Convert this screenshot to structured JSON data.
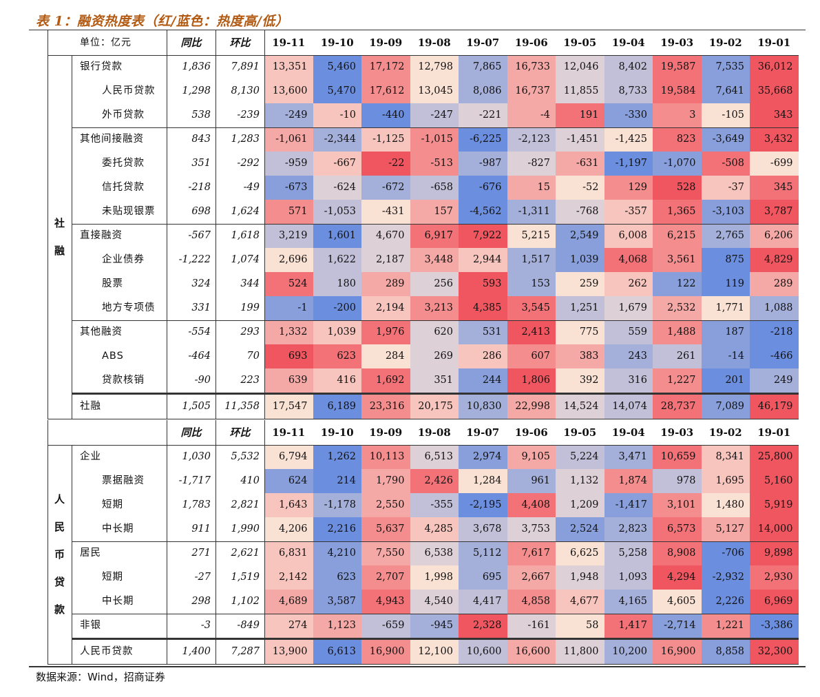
{
  "title": "表 1：融资热度表（红/蓝色：热度高/低）",
  "source": "数据来源：Wind，招商证券",
  "unit_label": "单位：亿元",
  "tables": [
    {
      "group": "社融",
      "header": {
        "yoy": "同比",
        "mom": "环比",
        "months": [
          "19-11",
          "19-10",
          "19-09",
          "19-08",
          "19-07",
          "19-06",
          "19-05",
          "19-04",
          "19-03",
          "19-02",
          "19-01"
        ]
      },
      "rows": [
        {
          "label": "银行贷款",
          "indent": false,
          "yoy": "1,836",
          "mom": "7,891",
          "values": [
            "13,351",
            "5,460",
            "17,172",
            "12,798",
            "7,865",
            "16,733",
            "12,046",
            "8,402",
            "19,587",
            "7,535",
            "36,012"
          ]
        },
        {
          "label": "人民币贷款",
          "indent": true,
          "yoy": "1,298",
          "mom": "8,130",
          "values": [
            "13,600",
            "5,470",
            "17,612",
            "13,045",
            "8,086",
            "16,737",
            "11,855",
            "8,733",
            "19,584",
            "7,641",
            "35,668"
          ]
        },
        {
          "label": "外币贷款",
          "indent": true,
          "yoy": "538",
          "mom": "-239",
          "values": [
            "-249",
            "-10",
            "-440",
            "-247",
            "-221",
            "-4",
            "191",
            "-330",
            "3",
            "-105",
            "343"
          ]
        },
        {
          "label": "其他间接融资",
          "indent": false,
          "yoy": "843",
          "mom": "1,283",
          "values": [
            "-1,061",
            "-2,344",
            "-1,125",
            "-1,015",
            "-6,225",
            "-2,123",
            "-1,451",
            "-1,425",
            "823",
            "-3,649",
            "3,432"
          ]
        },
        {
          "label": "委托贷款",
          "indent": true,
          "yoy": "351",
          "mom": "-292",
          "values": [
            "-959",
            "-667",
            "-22",
            "-513",
            "-987",
            "-827",
            "-631",
            "-1,197",
            "-1,070",
            "-508",
            "-699"
          ]
        },
        {
          "label": "信托贷款",
          "indent": true,
          "yoy": "-218",
          "mom": "-49",
          "values": [
            "-673",
            "-624",
            "-672",
            "-658",
            "-676",
            "15",
            "-52",
            "129",
            "528",
            "-37",
            "345"
          ]
        },
        {
          "label": "未贴现银票",
          "indent": true,
          "yoy": "698",
          "mom": "1,624",
          "values": [
            "571",
            "-1,053",
            "-431",
            "157",
            "-4,562",
            "-1,311",
            "-768",
            "-357",
            "1,365",
            "-3,103",
            "3,787"
          ]
        },
        {
          "label": "直接融资",
          "indent": false,
          "yoy": "-567",
          "mom": "1,618",
          "values": [
            "3,219",
            "1,601",
            "4,670",
            "6,917",
            "7,922",
            "5,215",
            "2,549",
            "6,008",
            "6,215",
            "2,765",
            "6,206"
          ]
        },
        {
          "label": "企业债券",
          "indent": true,
          "yoy": "-1,222",
          "mom": "1,074",
          "values": [
            "2,696",
            "1,622",
            "2,187",
            "3,448",
            "2,944",
            "1,517",
            "1,039",
            "4,068",
            "3,561",
            "875",
            "4,829"
          ]
        },
        {
          "label": "股票",
          "indent": true,
          "yoy": "324",
          "mom": "344",
          "values": [
            "524",
            "180",
            "289",
            "256",
            "593",
            "153",
            "259",
            "262",
            "122",
            "119",
            "289"
          ]
        },
        {
          "label": "地方专项债",
          "indent": true,
          "yoy": "331",
          "mom": "199",
          "values": [
            "-1",
            "-200",
            "2,194",
            "3,213",
            "4,385",
            "3,545",
            "1,251",
            "1,679",
            "2,532",
            "1,771",
            "1,088"
          ]
        },
        {
          "label": "其他融资",
          "indent": false,
          "yoy": "-554",
          "mom": "293",
          "values": [
            "1,332",
            "1,039",
            "1,976",
            "620",
            "531",
            "2,413",
            "775",
            "559",
            "1,488",
            "187",
            "-218"
          ]
        },
        {
          "label": "ABS",
          "indent": true,
          "yoy": "-464",
          "mom": "70",
          "values": [
            "693",
            "623",
            "284",
            "269",
            "286",
            "607",
            "383",
            "243",
            "261",
            "-14",
            "-466"
          ]
        },
        {
          "label": "贷款核销",
          "indent": true,
          "yoy": "-90",
          "mom": "223",
          "values": [
            "639",
            "416",
            "1,692",
            "351",
            "244",
            "1,806",
            "392",
            "316",
            "1,227",
            "201",
            "249"
          ]
        },
        {
          "label": "社融",
          "indent": false,
          "yoy": "1,505",
          "mom": "11,358",
          "values": [
            "17,547",
            "6,189",
            "23,316",
            "20,175",
            "10,830",
            "22,998",
            "14,524",
            "14,074",
            "28,737",
            "7,089",
            "46,179"
          ]
        }
      ]
    },
    {
      "group": "人民币贷款",
      "header": {
        "yoy": "同比",
        "mom": "环比",
        "months": [
          "19-11",
          "19-10",
          "19-09",
          "19-08",
          "19-07",
          "19-06",
          "19-05",
          "19-04",
          "19-03",
          "19-02",
          "19-01"
        ]
      },
      "rows": [
        {
          "label": "企业",
          "indent": false,
          "yoy": "1,030",
          "mom": "5,532",
          "values": [
            "6,794",
            "1,262",
            "10,113",
            "6,513",
            "2,974",
            "9,105",
            "5,224",
            "3,471",
            "10,659",
            "8,341",
            "25,800"
          ]
        },
        {
          "label": "票据融资",
          "indent": true,
          "yoy": "-1,717",
          "mom": "410",
          "values": [
            "624",
            "214",
            "1,790",
            "2,426",
            "1,284",
            "961",
            "1,132",
            "1,874",
            "978",
            "1,695",
            "5,160"
          ]
        },
        {
          "label": "短期",
          "indent": true,
          "yoy": "1,783",
          "mom": "2,821",
          "values": [
            "1,643",
            "-1,178",
            "2,550",
            "-355",
            "-2,195",
            "4,408",
            "1,209",
            "-1,417",
            "3,101",
            "1,480",
            "5,919"
          ]
        },
        {
          "label": "中长期",
          "indent": true,
          "yoy": "911",
          "mom": "1,990",
          "values": [
            "4,206",
            "2,216",
            "5,637",
            "4,285",
            "3,678",
            "3,753",
            "2,524",
            "2,823",
            "6,573",
            "5,127",
            "14,000"
          ]
        },
        {
          "label": "居民",
          "indent": false,
          "yoy": "271",
          "mom": "2,621",
          "values": [
            "6,831",
            "4,210",
            "7,550",
            "6,538",
            "5,112",
            "7,617",
            "6,625",
            "5,258",
            "8,908",
            "-706",
            "9,898"
          ]
        },
        {
          "label": "短期",
          "indent": true,
          "yoy": "-27",
          "mom": "1,519",
          "values": [
            "2,142",
            "623",
            "2,707",
            "1,998",
            "695",
            "2,667",
            "1,948",
            "1,093",
            "4,294",
            "-2,932",
            "2,930"
          ]
        },
        {
          "label": "中长期",
          "indent": true,
          "yoy": "298",
          "mom": "1,102",
          "values": [
            "4,689",
            "3,587",
            "4,943",
            "4,540",
            "4,417",
            "4,858",
            "4,677",
            "4,165",
            "4,605",
            "2,226",
            "6,969"
          ]
        },
        {
          "label": "非银",
          "indent": false,
          "yoy": "-3",
          "mom": "-849",
          "values": [
            "274",
            "1,123",
            "-659",
            "-945",
            "2,328",
            "-161",
            "58",
            "1,417",
            "-2,714",
            "1,221",
            "-3,386"
          ]
        },
        {
          "label": "人民币贷款",
          "indent": false,
          "yoy": "1,400",
          "mom": "7,287",
          "values": [
            "13,900",
            "6,613",
            "16,900",
            "12,100",
            "10,600",
            "16,600",
            "11,800",
            "10,200",
            "16,900",
            "8,858",
            "32,300"
          ]
        }
      ]
    }
  ]
}
